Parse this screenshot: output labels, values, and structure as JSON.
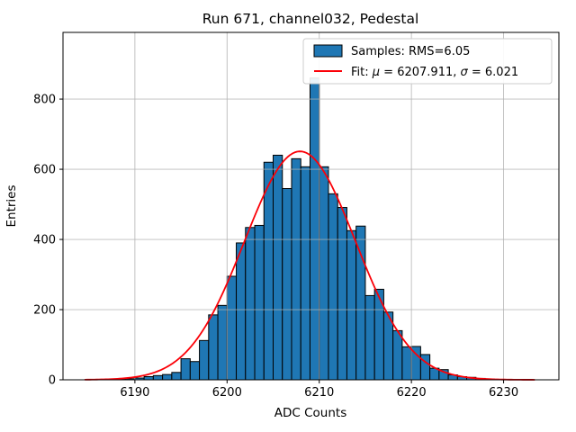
{
  "chart_data": {
    "type": "bar",
    "title": "Run 671, channel032, Pedestal",
    "xlabel": "ADC Counts",
    "ylabel": "Entries",
    "xlim": [
      6182.2,
      6236.0
    ],
    "ylim": [
      0,
      990
    ],
    "xticks": [
      6190,
      6200,
      6210,
      6220,
      6230
    ],
    "yticks": [
      0,
      200,
      400,
      600,
      800
    ],
    "grid": true,
    "legend_position": "upper right",
    "bin_width": 1,
    "bins_left_edge": [
      6187,
      6188,
      6189,
      6190,
      6191,
      6192,
      6193,
      6194,
      6195,
      6196,
      6197,
      6198,
      6199,
      6200,
      6201,
      6202,
      6203,
      6204,
      6205,
      6206,
      6207,
      6208,
      6209,
      6210,
      6211,
      6212,
      6213,
      6214,
      6215,
      6216,
      6217,
      6218,
      6219,
      6220,
      6221,
      6222,
      6223,
      6224,
      6225,
      6226,
      6227,
      6228
    ],
    "counts": [
      1,
      2,
      3,
      5,
      9,
      12,
      15,
      21,
      60,
      52,
      112,
      185,
      212,
      295,
      390,
      434,
      440,
      620,
      640,
      545,
      630,
      607,
      860,
      607,
      530,
      491,
      425,
      438,
      240,
      258,
      193,
      140,
      94,
      95,
      72,
      33,
      29,
      14,
      9,
      7,
      4,
      2
    ],
    "fit": {
      "mu": 6207.911,
      "sigma": 6.021,
      "amplitude": 651,
      "x_start": 6184.6,
      "x_end": 6233.5
    },
    "legend": {
      "samples_label": "Samples: RMS=6.05",
      "fit_parts": {
        "prefix": "Fit: ",
        "mu_sym": "μ",
        "mu_val": " = 6207.911, ",
        "sigma_sym": "σ",
        "sigma_val": " = 6.021"
      }
    },
    "colors": {
      "bar_fill": "#1f77b4",
      "bar_edge": "#000000",
      "fit_line": "#fb0007",
      "grid": "#b0b0b0",
      "spine": "#000000",
      "legend_border": "#cccccc",
      "background": "#ffffff"
    }
  }
}
